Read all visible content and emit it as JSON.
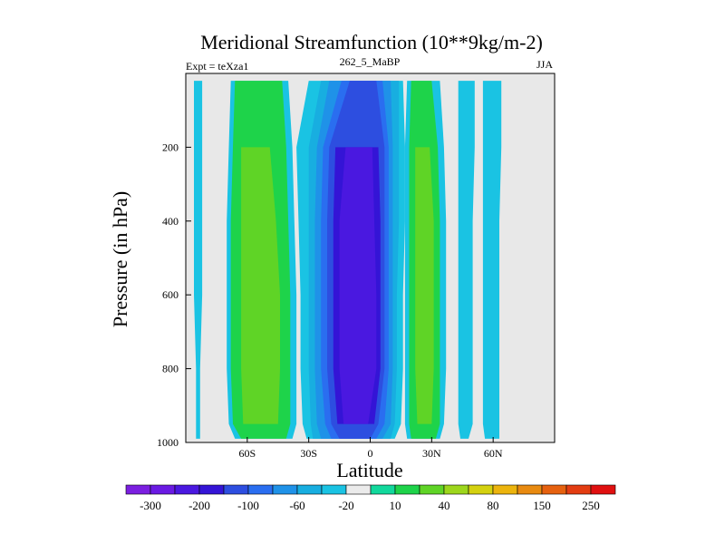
{
  "chart_data": {
    "type": "contour",
    "title": "Meridional Streamfunction (10**9kg/m-2)",
    "subtitle_left": "Expt = teXza1",
    "subtitle_center": "262_5_MaBP",
    "subtitle_right": "JJA",
    "xlabel": "Latitude",
    "ylabel": "Pressure (in hPa)",
    "xlim": [
      -90,
      90
    ],
    "ylim": [
      0,
      1000
    ],
    "y_inverted": true,
    "x_ticks": [
      {
        "value": -60,
        "label": "60S"
      },
      {
        "value": -30,
        "label": "30S"
      },
      {
        "value": 0,
        "label": "0"
      },
      {
        "value": 30,
        "label": "30N"
      },
      {
        "value": 60,
        "label": "60N"
      }
    ],
    "y_ticks": [
      {
        "value": 200,
        "label": "200"
      },
      {
        "value": 400,
        "label": "400"
      },
      {
        "value": 600,
        "label": "600"
      },
      {
        "value": 800,
        "label": "800"
      },
      {
        "value": 1000,
        "label": "1000"
      }
    ],
    "background_color": "#e8e8e8",
    "colorbar": {
      "colors": [
        "#7b1fe0",
        "#6a1ae3",
        "#4a18e0",
        "#3414d6",
        "#2d4ee0",
        "#2a6ef0",
        "#1f92e8",
        "#18aee0",
        "#1ac3e3",
        "#ebebeb",
        "#12d89c",
        "#1ed34a",
        "#5fd426",
        "#9dd61c",
        "#d4d10f",
        "#ecb40d",
        "#e88a10",
        "#e6610f",
        "#e33d12",
        "#e01010"
      ],
      "tick_labels": [
        "-300",
        "-200",
        "-100",
        "-60",
        "-20",
        "10",
        "40",
        "80",
        "150",
        "250"
      ]
    },
    "bands": [
      {
        "name": "far-south-cell",
        "color": "#1ac3e3",
        "xs": [
          [
            -86,
            -82
          ],
          [
            -86,
            -82
          ],
          [
            -86,
            -82
          ],
          [
            -86,
            -82
          ],
          [
            -85,
            -83
          ],
          [
            -85,
            -83
          ],
          [
            -85,
            -83
          ]
        ]
      },
      {
        "name": "south-positive-cell",
        "color": "#1ac3e3",
        "xs": [
          [
            -68,
            -40
          ],
          [
            -69,
            -38
          ],
          [
            -70,
            -37
          ],
          [
            -70,
            -36
          ],
          [
            -70,
            -36
          ],
          [
            -69,
            -36
          ],
          [
            -66,
            -38
          ]
        ]
      },
      {
        "name": "south-positive-cell",
        "color": "#1ed34a",
        "xs": [
          [
            -66,
            -43
          ],
          [
            -67,
            -41
          ],
          [
            -68,
            -40
          ],
          [
            -68,
            -39
          ],
          [
            -68,
            -39
          ],
          [
            -67,
            -39
          ],
          [
            -63,
            -41
          ]
        ]
      },
      {
        "name": "south-positive-cell",
        "color": "#5fd426",
        "xs": [
          null,
          [
            -63,
            -49
          ],
          [
            -63,
            -46
          ],
          [
            -63,
            -44
          ],
          [
            -63,
            -44
          ],
          [
            -62,
            -45
          ],
          null
        ]
      },
      {
        "name": "tropical-negative-cell",
        "color": "#1ac3e3",
        "xs": [
          [
            -30,
            16
          ],
          [
            -36,
            17
          ],
          [
            -35,
            17
          ],
          [
            -34,
            16
          ],
          [
            -34,
            16
          ],
          [
            -33,
            15
          ],
          [
            -31,
            12
          ]
        ]
      },
      {
        "name": "tropical-negative-cell",
        "color": "#18aee0",
        "xs": [
          [
            -24,
            14
          ],
          [
            -30,
            14
          ],
          [
            -30,
            14
          ],
          [
            -30,
            13
          ],
          [
            -30,
            13
          ],
          [
            -29,
            12
          ],
          [
            -28,
            10
          ]
        ]
      },
      {
        "name": "tropical-negative-cell",
        "color": "#1f92e8",
        "xs": [
          [
            -20,
            10
          ],
          [
            -26,
            11
          ],
          [
            -27,
            11
          ],
          [
            -27,
            11
          ],
          [
            -27,
            11
          ],
          [
            -26,
            10
          ],
          [
            -24,
            6
          ]
        ]
      },
      {
        "name": "tropical-negative-cell",
        "color": "#2a6ef0",
        "xs": [
          [
            -14,
            6
          ],
          [
            -23,
            9
          ],
          [
            -24,
            9
          ],
          [
            -24,
            9
          ],
          [
            -24,
            9
          ],
          [
            -22,
            7
          ],
          [
            -19,
            3
          ]
        ]
      },
      {
        "name": "tropical-negative-cell",
        "color": "#2d4ee0",
        "xs": [
          [
            -10,
            3
          ],
          [
            -20,
            7
          ],
          [
            -21,
            7
          ],
          [
            -21,
            7
          ],
          [
            -21,
            7
          ],
          [
            -19,
            4
          ],
          [
            -15,
            0
          ]
        ]
      },
      {
        "name": "tropical-negative-cell",
        "color": "#3414d6",
        "xs": [
          null,
          [
            -17,
            4
          ],
          [
            -18,
            5
          ],
          [
            -18,
            5
          ],
          [
            -18,
            5
          ],
          [
            -16,
            2
          ],
          null
        ]
      },
      {
        "name": "tropical-negative-cell",
        "color": "#4a18e0",
        "xs": [
          null,
          [
            -12,
            1
          ],
          [
            -15,
            2
          ],
          [
            -15,
            3
          ],
          [
            -15,
            3
          ],
          [
            -13,
            -1
          ],
          null
        ]
      },
      {
        "name": "north-positive-cell",
        "color": "#1ac3e3",
        "xs": [
          [
            18,
            34
          ],
          [
            17,
            36
          ],
          [
            17,
            37
          ],
          [
            17,
            37
          ],
          [
            17,
            37
          ],
          [
            17,
            36
          ],
          [
            18,
            34
          ]
        ]
      },
      {
        "name": "north-positive-cell",
        "color": "#1ed34a",
        "xs": [
          [
            20,
            30
          ],
          [
            19,
            33
          ],
          [
            19,
            34
          ],
          [
            19,
            34
          ],
          [
            19,
            34
          ],
          [
            19,
            34
          ],
          [
            20,
            32
          ]
        ]
      },
      {
        "name": "north-positive-cell",
        "color": "#5fd426",
        "xs": [
          null,
          [
            22,
            29
          ],
          [
            22,
            31
          ],
          [
            22,
            31
          ],
          [
            22,
            31
          ],
          [
            23,
            30
          ],
          null
        ]
      },
      {
        "name": "north-mid-cell",
        "color": "#1ac3e3",
        "xs": [
          [
            43,
            51
          ],
          [
            43,
            51
          ],
          [
            43,
            50
          ],
          [
            43,
            50
          ],
          [
            43,
            50
          ],
          [
            43,
            50
          ],
          [
            44,
            48
          ]
        ]
      },
      {
        "name": "north-high-cell",
        "color": "#1ac3e3",
        "xs": [
          [
            55,
            64
          ],
          [
            55,
            64
          ],
          [
            55,
            63
          ],
          [
            55,
            63
          ],
          [
            55,
            63
          ],
          [
            55,
            63
          ],
          [
            56,
            63
          ]
        ]
      }
    ],
    "band_levels": [
      {
        "pressure": 20
      },
      {
        "pressure": 200
      },
      {
        "pressure": 400
      },
      {
        "pressure": 600
      },
      {
        "pressure": 800
      },
      {
        "pressure": 950
      },
      {
        "pressure": 990
      }
    ]
  }
}
